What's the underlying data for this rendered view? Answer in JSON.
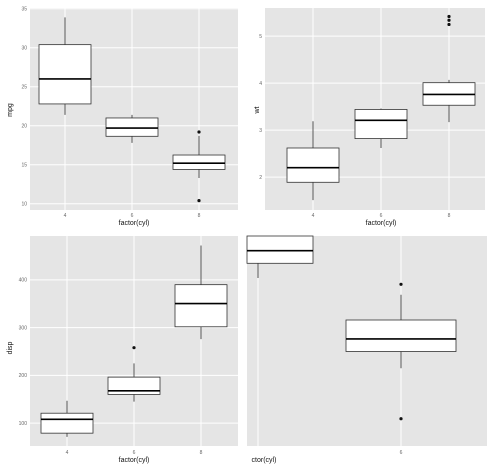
{
  "colors": {
    "panel_bg": "#e5e5e5",
    "grid_major": "#ffffff",
    "box_fill": "#ffffff",
    "box_line": "#333333",
    "outlier": "#111111"
  },
  "chart_data": [
    {
      "type": "box",
      "xlabel": "factor(cyl)",
      "ylabel": "mpg",
      "categories": [
        "4",
        "6",
        "8"
      ],
      "yticks": [
        10,
        15,
        20,
        25,
        30,
        35
      ],
      "ylim": [
        9.2,
        35.1
      ],
      "grid": true,
      "boxes": [
        {
          "category": "4",
          "min": 21.4,
          "q1": 22.8,
          "median": 26.0,
          "q3": 30.4,
          "max": 33.9,
          "outliers": []
        },
        {
          "category": "6",
          "min": 17.8,
          "q1": 18.65,
          "median": 19.7,
          "q3": 21.0,
          "max": 21.4,
          "outliers": []
        },
        {
          "category": "8",
          "min": 13.3,
          "q1": 14.4,
          "median": 15.2,
          "q3": 16.25,
          "max": 18.7,
          "outliers": [
            10.4,
            19.2
          ]
        }
      ]
    },
    {
      "type": "box",
      "xlabel": "factor(cyl)",
      "ylabel": "wt",
      "categories": [
        "4",
        "6",
        "8"
      ],
      "yticks": [
        2,
        3,
        4,
        5
      ],
      "ylim": [
        1.3,
        5.6
      ],
      "grid": true,
      "boxes": [
        {
          "category": "4",
          "min": 1.51,
          "q1": 1.89,
          "median": 2.2,
          "q3": 2.62,
          "max": 3.19,
          "outliers": []
        },
        {
          "category": "6",
          "min": 2.62,
          "q1": 2.82,
          "median": 3.21,
          "q3": 3.44,
          "max": 3.46,
          "outliers": []
        },
        {
          "category": "8",
          "min": 3.17,
          "q1": 3.53,
          "median": 3.76,
          "q3": 4.01,
          "max": 4.07,
          "outliers": [
            5.25,
            5.34,
            5.42
          ]
        }
      ]
    },
    {
      "type": "box",
      "xlabel": "factor(cyl)",
      "ylabel": "disp",
      "categories": [
        "4",
        "6",
        "8"
      ],
      "yticks": [
        100,
        200,
        300,
        400
      ],
      "ylim": [
        52,
        492
      ],
      "grid": true,
      "boxes": [
        {
          "category": "4",
          "min": 71.1,
          "q1": 78.9,
          "median": 108.0,
          "q3": 120.7,
          "max": 146.7,
          "outliers": []
        },
        {
          "category": "6",
          "min": 145.0,
          "q1": 160.0,
          "median": 167.6,
          "q3": 196.3,
          "max": 225.0,
          "outliers": [
            258.0
          ]
        },
        {
          "category": "8",
          "min": 275.8,
          "q1": 301.8,
          "median": 350.5,
          "q3": 390.0,
          "max": 472.0,
          "outliers": []
        }
      ]
    },
    {
      "type": "box",
      "xlabel": "ctor(cyl)",
      "ylabel": "",
      "categories": [
        "",
        "6"
      ],
      "yticks": [],
      "ylim": [
        0,
        100
      ],
      "grid": true,
      "boxes": [
        {
          "category": "",
          "min": 80,
          "q1": 87,
          "median": 93,
          "q3": 100,
          "max": 100,
          "outliers": []
        },
        {
          "category": "6",
          "min": 37,
          "q1": 45,
          "median": 51,
          "q3": 60,
          "max": 72,
          "outliers": [
            77,
            13
          ]
        }
      ]
    }
  ]
}
